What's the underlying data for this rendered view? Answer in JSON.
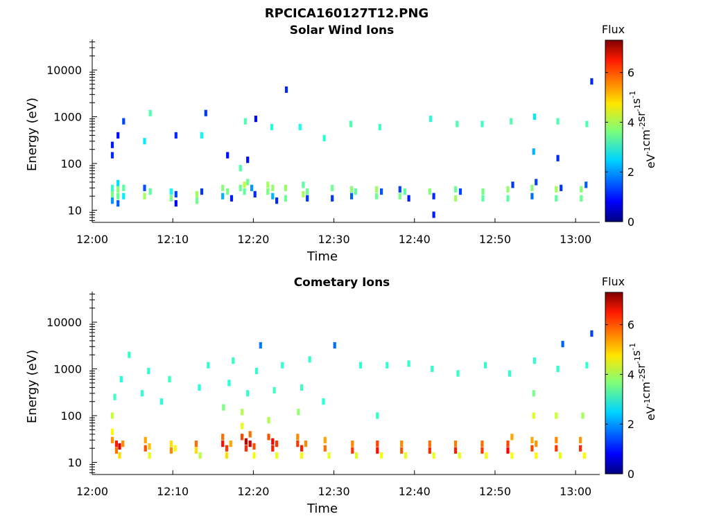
{
  "figure_title": "RPCICA160127T12.PNG",
  "chart_data": [
    {
      "type": "heatmap",
      "title": "Solar Wind Ions",
      "xlabel": "Time",
      "ylabel": "Energy (eV)",
      "x_range": [
        "12:00",
        "13:03"
      ],
      "y_range": [
        5.5,
        45000
      ],
      "y_scale": "log",
      "x_ticks": [
        "12:00",
        "12:10",
        "12:20",
        "12:30",
        "12:40",
        "12:50",
        "13:00"
      ],
      "y_ticks": [
        "10",
        "100",
        "1000",
        "10000"
      ],
      "y_tick_values": [
        10,
        100,
        1000,
        10000
      ],
      "grid": false,
      "colorbar": {
        "label": "Flux",
        "unit": "eV^-1 cm^-2 sr^-1 s^-1",
        "range": [
          0,
          7.3
        ],
        "ticks": [
          "0",
          "2",
          "4",
          "6"
        ],
        "tick_values": [
          0,
          2,
          4,
          6
        ],
        "colormap": "jet"
      },
      "cells": [
        {
          "t": 2.5,
          "e": 30,
          "v": 3.1
        },
        {
          "t": 2.5,
          "e": 22,
          "v": 3.6
        },
        {
          "t": 2.5,
          "e": 16,
          "v": 2.0
        },
        {
          "t": 2.5,
          "e": 150,
          "v": 1.2
        },
        {
          "t": 2.5,
          "e": 250,
          "v": 1.1
        },
        {
          "t": 3.2,
          "e": 38,
          "v": 2.5
        },
        {
          "t": 3.2,
          "e": 28,
          "v": 3.7
        },
        {
          "t": 3.2,
          "e": 20,
          "v": 3.5
        },
        {
          "t": 3.2,
          "e": 14,
          "v": 1.6
        },
        {
          "t": 3.2,
          "e": 400,
          "v": 1.0
        },
        {
          "t": 3.9,
          "e": 30,
          "v": 3.4
        },
        {
          "t": 3.9,
          "e": 20,
          "v": 2.6
        },
        {
          "t": 3.9,
          "e": 800,
          "v": 1.4
        },
        {
          "t": 6.5,
          "e": 30,
          "v": 1.5
        },
        {
          "t": 6.5,
          "e": 20,
          "v": 3.9
        },
        {
          "t": 6.5,
          "e": 300,
          "v": 2.6
        },
        {
          "t": 7.2,
          "e": 25,
          "v": 3.4
        },
        {
          "t": 7.2,
          "e": 1200,
          "v": 3.3
        },
        {
          "t": 9.8,
          "e": 25,
          "v": 2.8
        },
        {
          "t": 9.8,
          "e": 18,
          "v": 3.6
        },
        {
          "t": 10.4,
          "e": 22,
          "v": 1.4
        },
        {
          "t": 10.4,
          "e": 14,
          "v": 0.9
        },
        {
          "t": 10.4,
          "e": 400,
          "v": 1.2
        },
        {
          "t": 13.0,
          "e": 22,
          "v": 3.9
        },
        {
          "t": 13.0,
          "e": 16,
          "v": 3.5
        },
        {
          "t": 13.6,
          "e": 25,
          "v": 1.3
        },
        {
          "t": 13.6,
          "e": 400,
          "v": 2.8
        },
        {
          "t": 14.1,
          "e": 1200,
          "v": 1.3
        },
        {
          "t": 16.2,
          "e": 30,
          "v": 3.7
        },
        {
          "t": 16.2,
          "e": 20,
          "v": 2.2
        },
        {
          "t": 16.8,
          "e": 25,
          "v": 3.6
        },
        {
          "t": 16.8,
          "e": 150,
          "v": 1.0
        },
        {
          "t": 17.3,
          "e": 18,
          "v": 1.1
        },
        {
          "t": 18.4,
          "e": 30,
          "v": 3.5
        },
        {
          "t": 18.4,
          "e": 80,
          "v": 3.3
        },
        {
          "t": 18.9,
          "e": 35,
          "v": 4.1
        },
        {
          "t": 18.9,
          "e": 25,
          "v": 3.4
        },
        {
          "t": 19.3,
          "e": 40,
          "v": 3.5
        },
        {
          "t": 19.3,
          "e": 120,
          "v": 1.0
        },
        {
          "t": 19.8,
          "e": 30,
          "v": 2.0
        },
        {
          "t": 20.2,
          "e": 22,
          "v": 1.2
        },
        {
          "t": 19.0,
          "e": 800,
          "v": 3.3
        },
        {
          "t": 20.3,
          "e": 900,
          "v": 1.0
        },
        {
          "t": 21.8,
          "e": 35,
          "v": 3.9
        },
        {
          "t": 21.8,
          "e": 25,
          "v": 3.6
        },
        {
          "t": 22.4,
          "e": 30,
          "v": 3.8
        },
        {
          "t": 22.4,
          "e": 20,
          "v": 2.2
        },
        {
          "t": 22.9,
          "e": 16,
          "v": 1.2
        },
        {
          "t": 22.3,
          "e": 600,
          "v": 3.0
        },
        {
          "t": 24.1,
          "e": 3800,
          "v": 1.2
        },
        {
          "t": 24.0,
          "e": 30,
          "v": 3.8
        },
        {
          "t": 24.0,
          "e": 18,
          "v": 3.5
        },
        {
          "t": 26.2,
          "e": 35,
          "v": 3.4
        },
        {
          "t": 26.2,
          "e": 22,
          "v": 3.9
        },
        {
          "t": 26.7,
          "e": 25,
          "v": 3.5
        },
        {
          "t": 26.7,
          "e": 18,
          "v": 1.3
        },
        {
          "t": 25.8,
          "e": 600,
          "v": 2.9
        },
        {
          "t": 29.8,
          "e": 30,
          "v": 3.5
        },
        {
          "t": 29.8,
          "e": 18,
          "v": 1.3
        },
        {
          "t": 28.8,
          "e": 350,
          "v": 3.0
        },
        {
          "t": 32.2,
          "e": 28,
          "v": 3.7
        },
        {
          "t": 32.2,
          "e": 20,
          "v": 1.6
        },
        {
          "t": 32.7,
          "e": 25,
          "v": 3.4
        },
        {
          "t": 32.1,
          "e": 700,
          "v": 3.3
        },
        {
          "t": 35.3,
          "e": 28,
          "v": 3.9
        },
        {
          "t": 35.3,
          "e": 20,
          "v": 3.5
        },
        {
          "t": 35.9,
          "e": 25,
          "v": 1.5
        },
        {
          "t": 35.7,
          "e": 600,
          "v": 3.2
        },
        {
          "t": 38.2,
          "e": 28,
          "v": 1.4
        },
        {
          "t": 38.2,
          "e": 20,
          "v": 3.6
        },
        {
          "t": 38.8,
          "e": 25,
          "v": 3.4
        },
        {
          "t": 39.3,
          "e": 18,
          "v": 1.1
        },
        {
          "t": 41.9,
          "e": 25,
          "v": 3.7
        },
        {
          "t": 42.4,
          "e": 20,
          "v": 1.2
        },
        {
          "t": 42.4,
          "e": 8,
          "v": 1.1
        },
        {
          "t": 42.0,
          "e": 900,
          "v": 3.0
        },
        {
          "t": 45.1,
          "e": 28,
          "v": 3.5
        },
        {
          "t": 45.1,
          "e": 18,
          "v": 3.9
        },
        {
          "t": 45.7,
          "e": 25,
          "v": 1.4
        },
        {
          "t": 45.3,
          "e": 700,
          "v": 3.3
        },
        {
          "t": 48.5,
          "e": 25,
          "v": 3.6
        },
        {
          "t": 48.5,
          "e": 18,
          "v": 3.4
        },
        {
          "t": 48.4,
          "e": 700,
          "v": 3.2
        },
        {
          "t": 51.6,
          "e": 28,
          "v": 3.8
        },
        {
          "t": 51.6,
          "e": 18,
          "v": 3.4
        },
        {
          "t": 52.2,
          "e": 35,
          "v": 1.3
        },
        {
          "t": 52.0,
          "e": 800,
          "v": 3.3
        },
        {
          "t": 54.6,
          "e": 30,
          "v": 3.7
        },
        {
          "t": 54.6,
          "e": 20,
          "v": 1.7
        },
        {
          "t": 54.8,
          "e": 180,
          "v": 2.2
        },
        {
          "t": 54.9,
          "e": 1000,
          "v": 2.6
        },
        {
          "t": 55.1,
          "e": 40,
          "v": 1.4
        },
        {
          "t": 57.6,
          "e": 28,
          "v": 3.9
        },
        {
          "t": 57.6,
          "e": 18,
          "v": 3.4
        },
        {
          "t": 57.8,
          "e": 130,
          "v": 1.2
        },
        {
          "t": 57.8,
          "e": 800,
          "v": 3.3
        },
        {
          "t": 58.2,
          "e": 30,
          "v": 1.3
        },
        {
          "t": 60.7,
          "e": 28,
          "v": 3.7
        },
        {
          "t": 60.7,
          "e": 18,
          "v": 3.5
        },
        {
          "t": 61.3,
          "e": 35,
          "v": 1.6
        },
        {
          "t": 61.4,
          "e": 700,
          "v": 3.3
        },
        {
          "t": 62.0,
          "e": 5700,
          "v": 1.2
        }
      ]
    },
    {
      "type": "heatmap",
      "title": "Cometary Ions",
      "xlabel": "Time",
      "ylabel": "Energy (eV)",
      "x_range": [
        "12:00",
        "13:03"
      ],
      "y_range": [
        5.5,
        45000
      ],
      "y_scale": "log",
      "x_ticks": [
        "12:00",
        "12:10",
        "12:20",
        "12:30",
        "12:40",
        "12:50",
        "13:00"
      ],
      "y_ticks": [
        "10",
        "100",
        "1000",
        "10000"
      ],
      "y_tick_values": [
        10,
        100,
        1000,
        10000
      ],
      "grid": false,
      "colorbar": {
        "label": "Flux",
        "unit": "eV^-1 cm^-2 sr^-1 s^-1",
        "range": [
          0,
          7.3
        ],
        "ticks": [
          "0",
          "2",
          "4",
          "6"
        ],
        "tick_values": [
          0,
          2,
          4,
          6
        ],
        "colormap": "jet"
      },
      "cells": [
        {
          "t": 2.5,
          "e": 45,
          "v": 4.6
        },
        {
          "t": 2.5,
          "e": 30,
          "v": 5.3
        },
        {
          "t": 2.5,
          "e": 100,
          "v": 4.2
        },
        {
          "t": 3.0,
          "e": 25,
          "v": 6.2
        },
        {
          "t": 3.0,
          "e": 18,
          "v": 5.6
        },
        {
          "t": 3.4,
          "e": 22,
          "v": 6.6
        },
        {
          "t": 3.4,
          "e": 14,
          "v": 4.8
        },
        {
          "t": 3.8,
          "e": 25,
          "v": 5.4
        },
        {
          "t": 2.8,
          "e": 250,
          "v": 3.2
        },
        {
          "t": 3.6,
          "e": 600,
          "v": 3.0
        },
        {
          "t": 4.6,
          "e": 2000,
          "v": 3.1
        },
        {
          "t": 6.6,
          "e": 30,
          "v": 5.2
        },
        {
          "t": 6.6,
          "e": 20,
          "v": 5.8
        },
        {
          "t": 7.1,
          "e": 22,
          "v": 5.0
        },
        {
          "t": 7.1,
          "e": 14,
          "v": 4.4
        },
        {
          "t": 6.2,
          "e": 300,
          "v": 3.1
        },
        {
          "t": 7.0,
          "e": 900,
          "v": 3.1
        },
        {
          "t": 9.8,
          "e": 25,
          "v": 4.8
        },
        {
          "t": 9.8,
          "e": 18,
          "v": 5.4
        },
        {
          "t": 10.3,
          "e": 20,
          "v": 4.6
        },
        {
          "t": 8.6,
          "e": 200,
          "v": 3.0
        },
        {
          "t": 9.6,
          "e": 600,
          "v": 3.2
        },
        {
          "t": 12.9,
          "e": 25,
          "v": 5.6
        },
        {
          "t": 12.9,
          "e": 18,
          "v": 4.8
        },
        {
          "t": 13.4,
          "e": 14,
          "v": 4.1
        },
        {
          "t": 13.3,
          "e": 400,
          "v": 3.0
        },
        {
          "t": 14.4,
          "e": 1200,
          "v": 3.1
        },
        {
          "t": 16.2,
          "e": 35,
          "v": 5.6
        },
        {
          "t": 16.2,
          "e": 25,
          "v": 6.3
        },
        {
          "t": 16.7,
          "e": 20,
          "v": 6.0
        },
        {
          "t": 16.7,
          "e": 14,
          "v": 4.8
        },
        {
          "t": 17.2,
          "e": 25,
          "v": 5.2
        },
        {
          "t": 16.3,
          "e": 150,
          "v": 3.6
        },
        {
          "t": 17.0,
          "e": 500,
          "v": 3.0
        },
        {
          "t": 17.5,
          "e": 1500,
          "v": 3.1
        },
        {
          "t": 18.6,
          "e": 35,
          "v": 5.9
        },
        {
          "t": 18.6,
          "e": 60,
          "v": 4.4
        },
        {
          "t": 18.6,
          "e": 120,
          "v": 4.0
        },
        {
          "t": 19.1,
          "e": 28,
          "v": 6.8
        },
        {
          "t": 19.1,
          "e": 20,
          "v": 6.1
        },
        {
          "t": 19.6,
          "e": 25,
          "v": 6.7
        },
        {
          "t": 19.6,
          "e": 40,
          "v": 5.6
        },
        {
          "t": 20.1,
          "e": 22,
          "v": 5.8
        },
        {
          "t": 20.1,
          "e": 14,
          "v": 4.5
        },
        {
          "t": 19.3,
          "e": 300,
          "v": 3.1
        },
        {
          "t": 20.4,
          "e": 900,
          "v": 3.1
        },
        {
          "t": 20.9,
          "e": 3200,
          "v": 1.8
        },
        {
          "t": 21.9,
          "e": 35,
          "v": 5.8
        },
        {
          "t": 21.9,
          "e": 80,
          "v": 4.0
        },
        {
          "t": 22.4,
          "e": 28,
          "v": 6.4
        },
        {
          "t": 22.4,
          "e": 20,
          "v": 6.2
        },
        {
          "t": 22.9,
          "e": 25,
          "v": 6.0
        },
        {
          "t": 22.9,
          "e": 14,
          "v": 4.4
        },
        {
          "t": 22.6,
          "e": 350,
          "v": 3.2
        },
        {
          "t": 23.6,
          "e": 1200,
          "v": 3.1
        },
        {
          "t": 25.5,
          "e": 35,
          "v": 5.4
        },
        {
          "t": 25.5,
          "e": 25,
          "v": 6.0
        },
        {
          "t": 26.0,
          "e": 20,
          "v": 6.2
        },
        {
          "t": 26.0,
          "e": 14,
          "v": 4.6
        },
        {
          "t": 26.5,
          "e": 25,
          "v": 5.4
        },
        {
          "t": 25.6,
          "e": 120,
          "v": 3.8
        },
        {
          "t": 26.0,
          "e": 400,
          "v": 3.2
        },
        {
          "t": 27.0,
          "e": 1600,
          "v": 3.1
        },
        {
          "t": 28.9,
          "e": 30,
          "v": 5.2
        },
        {
          "t": 28.9,
          "e": 20,
          "v": 5.6
        },
        {
          "t": 29.4,
          "e": 14,
          "v": 4.4
        },
        {
          "t": 28.7,
          "e": 200,
          "v": 3.0
        },
        {
          "t": 30.1,
          "e": 3200,
          "v": 1.7
        },
        {
          "t": 32.3,
          "e": 25,
          "v": 5.4
        },
        {
          "t": 32.3,
          "e": 18,
          "v": 6.0
        },
        {
          "t": 32.8,
          "e": 14,
          "v": 4.3
        },
        {
          "t": 33.3,
          "e": 1200,
          "v": 3.1
        },
        {
          "t": 35.4,
          "e": 25,
          "v": 5.9
        },
        {
          "t": 35.4,
          "e": 18,
          "v": 6.3
        },
        {
          "t": 35.9,
          "e": 14,
          "v": 4.5
        },
        {
          "t": 35.4,
          "e": 100,
          "v": 3.1
        },
        {
          "t": 36.6,
          "e": 1200,
          "v": 3.1
        },
        {
          "t": 38.4,
          "e": 25,
          "v": 5.4
        },
        {
          "t": 38.4,
          "e": 18,
          "v": 5.8
        },
        {
          "t": 38.9,
          "e": 14,
          "v": 4.4
        },
        {
          "t": 39.3,
          "e": 1300,
          "v": 3.1
        },
        {
          "t": 41.9,
          "e": 25,
          "v": 5.6
        },
        {
          "t": 41.9,
          "e": 18,
          "v": 6.1
        },
        {
          "t": 42.4,
          "e": 14,
          "v": 4.4
        },
        {
          "t": 42.2,
          "e": 1000,
          "v": 3.1
        },
        {
          "t": 45.1,
          "e": 25,
          "v": 5.5
        },
        {
          "t": 45.1,
          "e": 18,
          "v": 6.2
        },
        {
          "t": 45.6,
          "e": 14,
          "v": 4.4
        },
        {
          "t": 45.4,
          "e": 800,
          "v": 3.1
        },
        {
          "t": 48.4,
          "e": 25,
          "v": 5.6
        },
        {
          "t": 48.4,
          "e": 18,
          "v": 6.0
        },
        {
          "t": 48.9,
          "e": 14,
          "v": 4.5
        },
        {
          "t": 48.8,
          "e": 1200,
          "v": 3.1
        },
        {
          "t": 51.6,
          "e": 25,
          "v": 5.9
        },
        {
          "t": 51.6,
          "e": 18,
          "v": 6.4
        },
        {
          "t": 52.1,
          "e": 35,
          "v": 5.2
        },
        {
          "t": 52.1,
          "e": 14,
          "v": 4.5
        },
        {
          "t": 51.8,
          "e": 800,
          "v": 3.1
        },
        {
          "t": 54.6,
          "e": 30,
          "v": 5.2
        },
        {
          "t": 54.6,
          "e": 20,
          "v": 5.9
        },
        {
          "t": 54.8,
          "e": 100,
          "v": 4.3
        },
        {
          "t": 54.8,
          "e": 300,
          "v": 3.6
        },
        {
          "t": 55.1,
          "e": 25,
          "v": 5.3
        },
        {
          "t": 55.1,
          "e": 14,
          "v": 4.6
        },
        {
          "t": 54.9,
          "e": 1500,
          "v": 3.1
        },
        {
          "t": 57.6,
          "e": 30,
          "v": 5.4
        },
        {
          "t": 57.6,
          "e": 20,
          "v": 6.0
        },
        {
          "t": 57.6,
          "e": 100,
          "v": 4.2
        },
        {
          "t": 58.1,
          "e": 14,
          "v": 4.4
        },
        {
          "t": 57.8,
          "e": 1000,
          "v": 3.1
        },
        {
          "t": 58.4,
          "e": 3400,
          "v": 1.6
        },
        {
          "t": 60.6,
          "e": 30,
          "v": 5.3
        },
        {
          "t": 60.6,
          "e": 20,
          "v": 6.1
        },
        {
          "t": 61.1,
          "e": 14,
          "v": 4.6
        },
        {
          "t": 60.9,
          "e": 100,
          "v": 3.9
        },
        {
          "t": 61.4,
          "e": 1200,
          "v": 3.1
        },
        {
          "t": 62.0,
          "e": 5700,
          "v": 1.4
        }
      ]
    }
  ]
}
